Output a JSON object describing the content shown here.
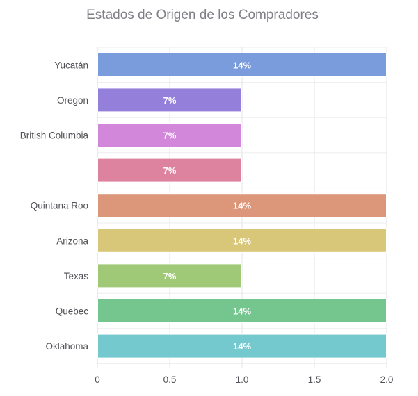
{
  "chart_data": {
    "type": "bar",
    "orientation": "horizontal",
    "title": "Estados de Origen de los Compradores",
    "xlabel": "",
    "ylabel": "",
    "xlim": [
      0,
      2
    ],
    "x_ticks": [
      {
        "value": 0,
        "label": "0"
      },
      {
        "value": 0.5,
        "label": "0.5"
      },
      {
        "value": 1,
        "label": "1.0"
      },
      {
        "value": 1.5,
        "label": "1.5"
      },
      {
        "value": 2,
        "label": "2.0"
      }
    ],
    "grid": true,
    "legend": "none",
    "categories": [
      "Yucatán",
      "Oregon",
      "British Columbia",
      "",
      "Quintana Roo",
      "Arizona",
      "Texas",
      "Quebec",
      "Oklahoma"
    ],
    "values": [
      2,
      1,
      1,
      1,
      2,
      2,
      1,
      2,
      2
    ],
    "data_labels": [
      "14%",
      "7%",
      "7%",
      "7%",
      "14%",
      "14%",
      "7%",
      "14%",
      "14%"
    ],
    "colors": [
      "#7a9cdc",
      "#9480da",
      "#d387da",
      "#dd839f",
      "#dc977a",
      "#d8c779",
      "#9fc977",
      "#75c58e",
      "#73c9ce"
    ]
  }
}
